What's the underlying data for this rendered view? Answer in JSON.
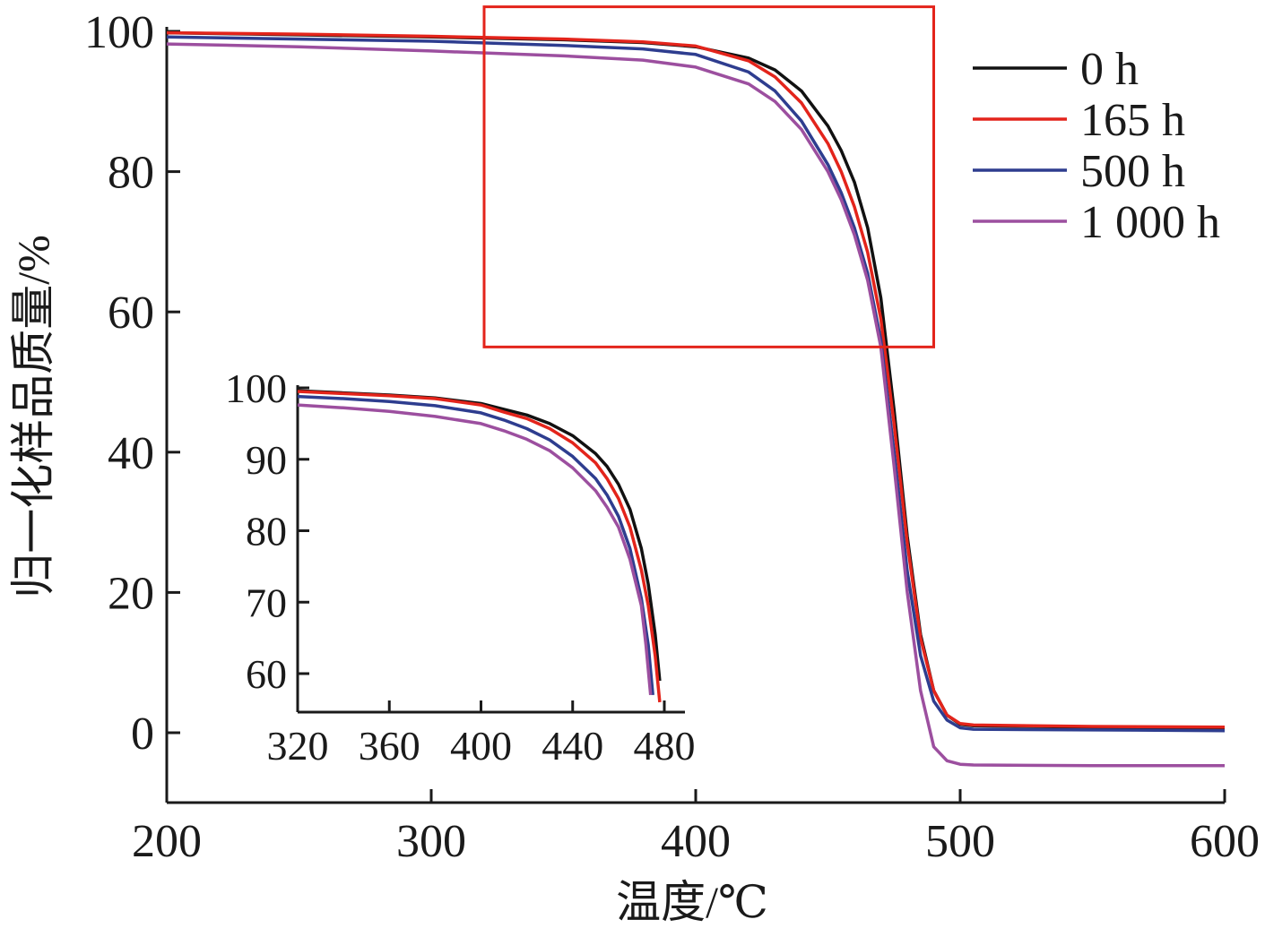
{
  "chart_data": [
    {
      "id": "main",
      "type": "line",
      "xlabel": "温度/℃",
      "ylabel": "归一化样品质量/%",
      "xlim": [
        200,
        600
      ],
      "ylim": [
        -10,
        100
      ],
      "xticks": [
        "200",
        "300",
        "400",
        "500",
        "600"
      ],
      "yticks": [
        "0",
        "20",
        "40",
        "60",
        "80",
        "100"
      ],
      "grid": false,
      "legend_position": "top-right",
      "series": [
        {
          "name": "0 h",
          "color": "#111111",
          "x": [
            200,
            250,
            300,
            350,
            380,
            400,
            420,
            430,
            440,
            450,
            455,
            460,
            465,
            470,
            475,
            480,
            485,
            490,
            495,
            500,
            505,
            550,
            600
          ],
          "y": [
            99.8,
            99.5,
            99.2,
            98.8,
            98.4,
            97.8,
            96.2,
            94.5,
            91.5,
            86.5,
            83.0,
            78.5,
            72.0,
            62.0,
            46.0,
            28.0,
            14.0,
            6.0,
            2.5,
            1.2,
            1.0,
            0.8,
            0.6
          ]
        },
        {
          "name": "165 h",
          "color": "#e3241b",
          "x": [
            200,
            250,
            300,
            350,
            380,
            400,
            420,
            430,
            440,
            450,
            455,
            460,
            465,
            470,
            475,
            480,
            485,
            490,
            495,
            500,
            505,
            550,
            600
          ],
          "y": [
            99.8,
            99.6,
            99.3,
            98.9,
            98.5,
            97.9,
            95.8,
            93.5,
            89.8,
            84.0,
            80.0,
            75.0,
            68.5,
            59.0,
            44.0,
            27.0,
            13.5,
            6.0,
            2.5,
            1.3,
            1.1,
            0.9,
            0.8
          ]
        },
        {
          "name": "500 h",
          "color": "#2e3d8f",
          "x": [
            200,
            250,
            300,
            350,
            380,
            400,
            420,
            430,
            440,
            450,
            455,
            460,
            465,
            470,
            475,
            480,
            485,
            490,
            495,
            500,
            505,
            550,
            600
          ],
          "y": [
            99.2,
            98.9,
            98.6,
            98.0,
            97.5,
            96.7,
            94.2,
            91.5,
            87.2,
            81.0,
            77.0,
            72.0,
            65.5,
            56.0,
            40.0,
            23.0,
            11.0,
            4.5,
            1.8,
            0.7,
            0.5,
            0.4,
            0.3
          ]
        },
        {
          "name": "1 000 h",
          "color": "#9c4f9f",
          "x": [
            200,
            250,
            300,
            350,
            380,
            400,
            420,
            430,
            440,
            450,
            455,
            460,
            465,
            470,
            475,
            480,
            485,
            490,
            495,
            500,
            505,
            550,
            600
          ],
          "y": [
            98.2,
            97.8,
            97.2,
            96.5,
            95.9,
            94.9,
            92.5,
            90.0,
            86.0,
            80.0,
            76.0,
            71.0,
            64.5,
            55.0,
            38.0,
            20.0,
            6.0,
            -2.0,
            -4.0,
            -4.5,
            -4.6,
            -4.7,
            -4.7
          ]
        }
      ]
    },
    {
      "id": "inset",
      "type": "line",
      "xlim": [
        320,
        485
      ],
      "ylim": [
        55,
        100
      ],
      "xticks": [
        "320",
        "360",
        "400",
        "440",
        "480"
      ],
      "yticks": [
        "60",
        "70",
        "80",
        "90",
        "100"
      ],
      "grid": false,
      "series": [
        {
          "name": "0 h",
          "color": "#111111",
          "x": [
            320,
            340,
            360,
            380,
            400,
            410,
            420,
            430,
            440,
            450,
            455,
            460,
            465,
            470,
            473,
            476,
            478
          ],
          "y": [
            99.6,
            99.3,
            99.0,
            98.6,
            97.8,
            97.0,
            96.2,
            95.0,
            93.3,
            90.8,
            89.0,
            86.5,
            83.0,
            77.5,
            72.5,
            65.5,
            59.0
          ]
        },
        {
          "name": "165 h",
          "color": "#e3241b",
          "x": [
            320,
            340,
            360,
            380,
            400,
            410,
            420,
            430,
            440,
            450,
            455,
            460,
            465,
            470,
            473,
            476,
            478
          ],
          "y": [
            99.5,
            99.2,
            98.9,
            98.5,
            97.6,
            96.6,
            95.7,
            94.3,
            92.3,
            89.5,
            87.3,
            84.5,
            80.5,
            74.5,
            69.5,
            62.5,
            56.0
          ]
        },
        {
          "name": "500 h",
          "color": "#2e3d8f",
          "x": [
            320,
            340,
            360,
            380,
            400,
            410,
            420,
            430,
            440,
            450,
            455,
            460,
            465,
            470,
            473,
            475
          ],
          "y": [
            98.8,
            98.5,
            98.1,
            97.5,
            96.5,
            95.5,
            94.3,
            92.7,
            90.4,
            87.3,
            85.0,
            82.0,
            77.5,
            70.5,
            64.0,
            57.0
          ]
        },
        {
          "name": "1 000 h",
          "color": "#9c4f9f",
          "x": [
            320,
            340,
            360,
            380,
            400,
            410,
            420,
            430,
            440,
            450,
            455,
            460,
            465,
            470,
            472,
            474
          ],
          "y": [
            97.6,
            97.2,
            96.7,
            96.0,
            95.0,
            94.0,
            92.8,
            91.2,
            88.8,
            85.6,
            83.3,
            80.5,
            76.0,
            69.5,
            64.0,
            57.0
          ]
        }
      ]
    }
  ],
  "zoom_box": {
    "color": "#e3241b",
    "x_range": [
      320,
      490
    ],
    "y_range": [
      55,
      103.5
    ]
  }
}
